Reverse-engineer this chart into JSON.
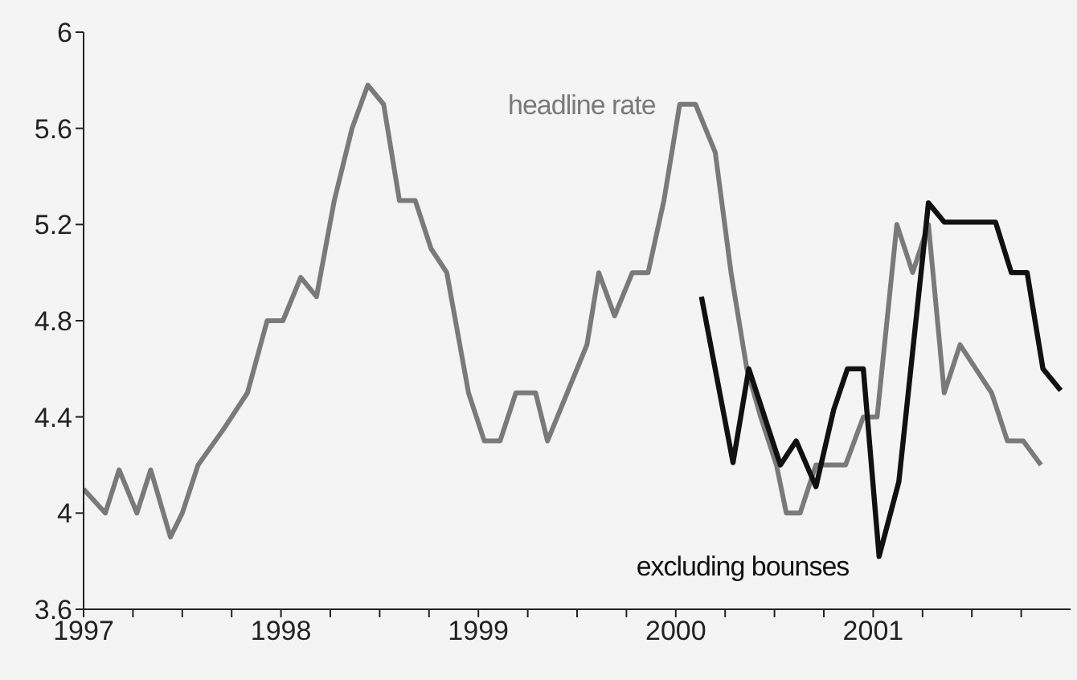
{
  "chart_data": {
    "type": "line",
    "marker": "none",
    "line_style": "solid",
    "legend": false,
    "xlim": [
      1997,
      2002
    ],
    "xticks": [
      1997,
      {
        "value": 1997.25,
        "label": null
      },
      {
        "value": 1997.5,
        "label": null
      },
      {
        "value": 1997.75,
        "label": null
      },
      1998,
      {
        "value": 1998.25,
        "label": null
      },
      {
        "value": 1998.5,
        "label": null
      },
      {
        "value": 1998.75,
        "label": null
      },
      1999,
      {
        "value": 1999.25,
        "label": null
      },
      {
        "value": 1999.5,
        "label": null
      },
      {
        "value": 1999.75,
        "label": null
      },
      2000,
      {
        "value": 2000.25,
        "label": null
      },
      {
        "value": 2000.5,
        "label": null
      },
      {
        "value": 2000.75,
        "label": null
      },
      2001,
      {
        "value": 2001.25,
        "label": null
      },
      {
        "value": 2001.5,
        "label": null
      },
      {
        "value": 2001.75,
        "label": null
      }
    ],
    "ylim": [
      3.6,
      6
    ],
    "yticks": [
      3.6,
      4,
      4.4,
      4.8,
      5.2,
      5.6,
      6
    ],
    "series": [
      {
        "name": "headline rate",
        "color": "#7a7a7a",
        "x": [
          1997.0,
          1997.11,
          1997.18,
          1997.27,
          1997.34,
          1997.44,
          1997.5,
          1997.58,
          1997.71,
          1997.83,
          1997.93,
          1998.01,
          1998.1,
          1998.18,
          1998.27,
          1998.36,
          1998.44,
          1998.52,
          1998.6,
          1998.68,
          1998.76,
          1998.84,
          1998.95,
          1999.03,
          1999.11,
          1999.19,
          1999.29,
          1999.35,
          1999.45,
          1999.55,
          1999.61,
          1999.69,
          1999.78,
          1999.86,
          1999.94,
          2000.02,
          2000.1,
          2000.2,
          2000.28,
          2000.36,
          2000.43,
          2000.51,
          2000.56,
          2000.63,
          2000.71,
          2000.86,
          2000.95,
          2001.02,
          2001.12,
          2001.2,
          2001.28,
          2001.36,
          2001.44,
          2001.52,
          2001.6,
          2001.68,
          2001.76,
          2001.85
        ],
        "values": [
          4.1,
          4.0,
          4.18,
          4.0,
          4.18,
          3.9,
          4.0,
          4.2,
          4.35,
          4.5,
          4.8,
          4.8,
          4.98,
          4.9,
          5.3,
          5.6,
          5.78,
          5.7,
          5.3,
          5.3,
          5.1,
          5.0,
          4.5,
          4.3,
          4.3,
          4.5,
          4.5,
          4.3,
          4.5,
          4.7,
          5.0,
          4.82,
          5.0,
          5.0,
          5.3,
          5.7,
          5.7,
          5.5,
          5.0,
          4.6,
          4.4,
          4.2,
          4.0,
          4.0,
          4.2,
          4.2,
          4.4,
          4.4,
          5.2,
          5.0,
          5.2,
          4.5,
          4.7,
          4.6,
          4.5,
          4.3,
          4.3,
          4.2
        ]
      },
      {
        "name": "excluding bounses",
        "color": "#111111",
        "x": [
          2000.13,
          2000.29,
          2000.37,
          2000.53,
          2000.61,
          2000.71,
          2000.8,
          2000.87,
          2000.95,
          2001.03,
          2001.13,
          2001.28,
          2001.36,
          2001.62,
          2001.7,
          2001.78,
          2001.86,
          2001.95
        ],
        "values": [
          4.9,
          4.21,
          4.6,
          4.2,
          4.3,
          4.11,
          4.43,
          4.6,
          4.6,
          3.82,
          4.13,
          5.29,
          5.21,
          5.21,
          5.0,
          5.0,
          4.6,
          4.51
        ]
      }
    ]
  }
}
